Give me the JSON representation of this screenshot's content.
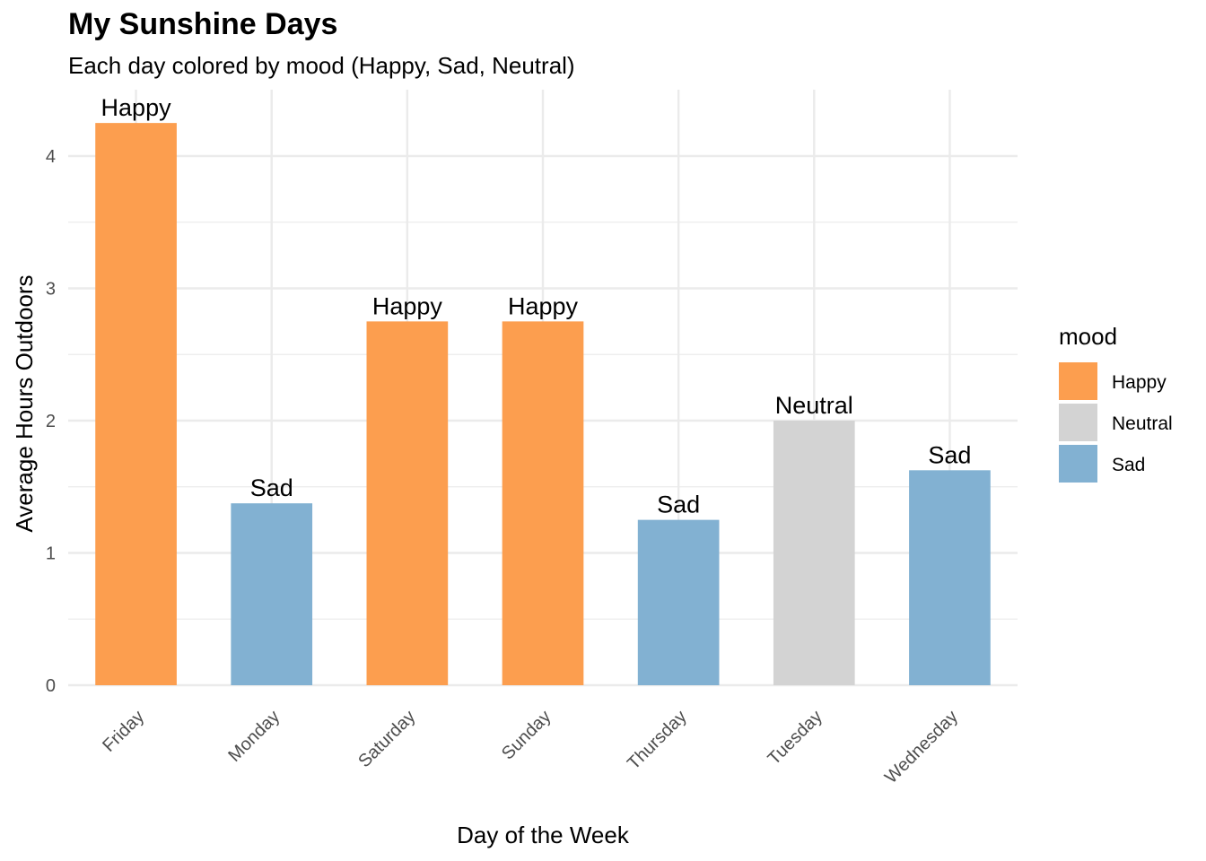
{
  "chart_data": {
    "type": "bar",
    "title": "My Sunshine Days",
    "subtitle": "Each day colored by mood (Happy, Sad, Neutral)",
    "xlabel": "Day of the Week",
    "ylabel": "Average Hours Outdoors",
    "categories": [
      "Friday",
      "Monday",
      "Saturday",
      "Sunday",
      "Thursday",
      "Tuesday",
      "Wednesday"
    ],
    "values": [
      4.25,
      1.375,
      2.75,
      2.75,
      1.25,
      2.0,
      1.625
    ],
    "moods": [
      "Happy",
      "Sad",
      "Happy",
      "Happy",
      "Sad",
      "Neutral",
      "Sad"
    ],
    "ylim": [
      0,
      4.45
    ],
    "yticks": [
      0,
      1,
      2,
      3,
      4
    ],
    "grid": true,
    "legend": {
      "title": "mood",
      "placement": "right",
      "entries": [
        {
          "name": "Happy",
          "color": "#FC9E4F"
        },
        {
          "name": "Neutral",
          "color": "#D3D3D3"
        },
        {
          "name": "Sad",
          "color": "#82B1D2"
        }
      ]
    },
    "colors": {
      "Happy": "#FC9E4F",
      "Neutral": "#D3D3D3",
      "Sad": "#82B1D2"
    }
  }
}
